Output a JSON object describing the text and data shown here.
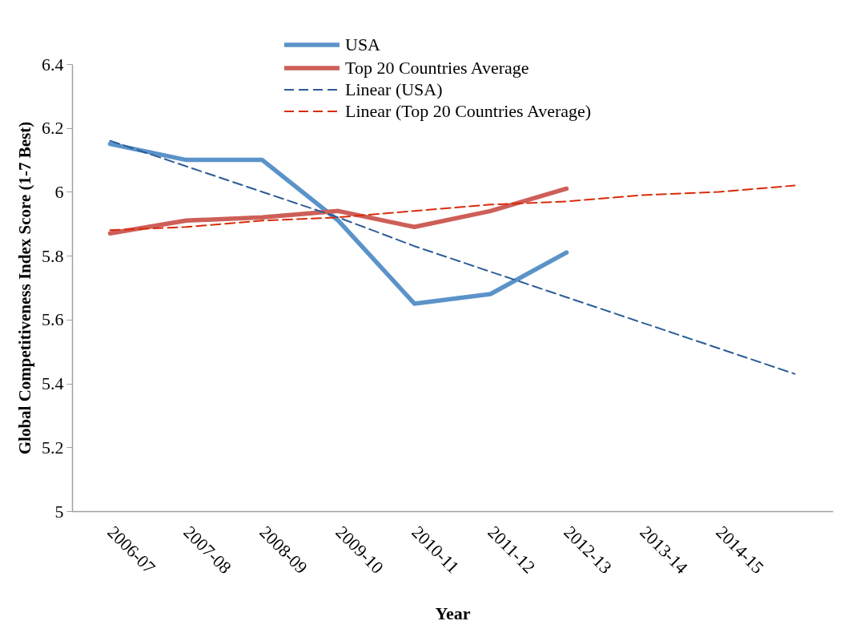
{
  "chart_data": {
    "type": "line",
    "xlabel": "Year",
    "ylabel": "Global Competitiveness Index Score (1-7 Best)",
    "categories": [
      "2006-07",
      "2007-08",
      "2008-09",
      "2009-10",
      "2010-11",
      "2011-12",
      "2012-13",
      "2013-14",
      "2014-15",
      null
    ],
    "ylim": [
      5,
      6.4
    ],
    "yticks": [
      5,
      5.2,
      5.4,
      5.6,
      5.8,
      6,
      6.2,
      6.4
    ],
    "grid": false,
    "legend": "top",
    "series": [
      {
        "name": "USA",
        "color": "#5b93c9",
        "line_style": "solid",
        "values": [
          6.15,
          6.1,
          6.1,
          5.91,
          5.65,
          5.68,
          5.81,
          null,
          null,
          null
        ]
      },
      {
        "name": "Top 20 Countries Average",
        "color": "#cd5f58",
        "line_style": "solid",
        "values": [
          5.87,
          5.91,
          5.92,
          5.94,
          5.89,
          5.94,
          6.01,
          null,
          null,
          null
        ]
      },
      {
        "name": "Linear (USA)",
        "type": "line",
        "color": "#2c5d96",
        "line_style": "dashed",
        "values": [
          6.16,
          6.08,
          6.0,
          5.92,
          5.83,
          5.75,
          5.67,
          5.59,
          5.51,
          5.43
        ]
      },
      {
        "name": "Linear (Top 20 Countries Average)",
        "type": "line",
        "color": "#d92b0a",
        "line_style": "dashed",
        "values": [
          5.88,
          5.89,
          5.91,
          5.92,
          5.94,
          5.96,
          5.97,
          5.99,
          6.0,
          6.02
        ]
      }
    ]
  }
}
